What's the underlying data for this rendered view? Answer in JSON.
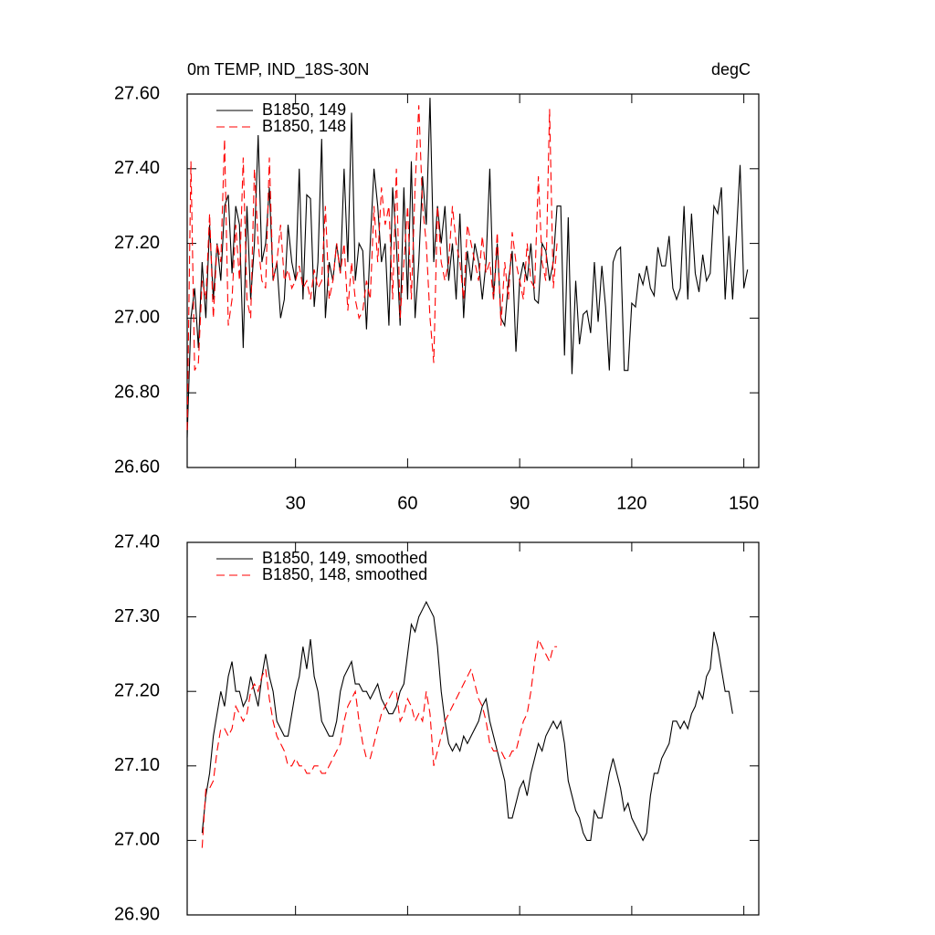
{
  "chart_data": [
    {
      "type": "line",
      "title": "0m TEMP, IND_18S-30N",
      "units": "degC",
      "x": [
        1,
        2,
        3,
        4,
        5,
        6,
        7,
        8,
        9,
        10,
        11,
        12,
        13,
        14,
        15,
        16,
        17,
        18,
        19,
        20,
        21,
        22,
        23,
        24,
        25,
        26,
        27,
        28,
        29,
        30,
        31,
        32,
        33,
        34,
        35,
        36,
        37,
        38,
        39,
        40,
        41,
        42,
        43,
        44,
        45,
        46,
        47,
        48,
        49,
        50,
        51,
        52,
        53,
        54,
        55,
        56,
        57,
        58,
        59,
        60,
        61,
        62,
        63,
        64,
        65,
        66,
        67,
        68,
        69,
        70,
        71,
        72,
        73,
        74,
        75,
        76,
        77,
        78,
        79,
        80,
        81,
        82,
        83,
        84,
        85,
        86,
        87,
        88,
        89,
        90,
        91,
        92,
        93,
        94,
        95,
        96,
        97,
        98,
        99,
        100,
        101,
        102,
        103,
        104,
        105,
        106,
        107,
        108,
        109,
        110,
        111,
        112,
        113,
        114,
        115,
        116,
        117,
        118,
        119,
        120,
        121,
        122,
        123,
        124,
        125,
        126,
        127,
        128,
        129,
        130,
        131,
        132,
        133,
        134,
        135,
        136,
        137,
        138,
        139,
        140,
        141,
        142,
        143,
        144,
        145,
        146,
        147,
        148,
        149,
        150,
        151
      ],
      "series": [
        {
          "name": "B1850, 149",
          "color": "#000000",
          "line_style": "solid",
          "values": [
            26.68,
            27.0,
            27.08,
            26.92,
            27.15,
            27.0,
            27.25,
            27.05,
            27.2,
            27.1,
            27.3,
            27.33,
            27.12,
            27.3,
            27.25,
            26.92,
            27.3,
            27.05,
            27.2,
            27.49,
            27.15,
            27.2,
            27.35,
            27.1,
            27.15,
            27.0,
            27.05,
            27.25,
            27.15,
            27.1,
            27.4,
            27.05,
            27.33,
            27.32,
            27.03,
            27.15,
            27.48,
            27.0,
            27.15,
            27.1,
            27.2,
            27.12,
            27.4,
            27.15,
            27.55,
            27.1,
            27.2,
            27.18,
            26.97,
            27.2,
            27.4,
            27.3,
            27.15,
            27.2,
            26.98,
            27.35,
            27.2,
            26.98,
            27.35,
            27.05,
            27.42,
            27.0,
            27.15,
            27.38,
            27.25,
            27.59,
            27.15,
            27.3,
            27.2,
            27.3,
            27.1,
            27.2,
            27.05,
            27.28,
            27.0,
            27.18,
            27.1,
            27.2,
            27.15,
            27.05,
            27.15,
            27.4,
            27.05,
            27.2,
            27.0,
            26.98,
            27.1,
            27.18,
            26.91,
            27.1,
            27.15,
            27.1,
            27.2,
            27.05,
            27.04,
            27.2,
            27.18,
            27.1,
            27.15,
            27.3,
            27.3,
            26.9,
            27.27,
            26.85,
            27.1,
            26.93,
            27.01,
            27.02,
            26.96,
            27.15,
            26.99,
            27.14,
            27.03,
            26.86,
            27.15,
            27.18,
            27.19,
            26.86,
            26.86,
            27.04,
            27.03,
            27.12,
            27.09,
            27.14,
            27.08,
            27.06,
            27.19,
            27.14,
            27.14,
            27.22,
            27.08,
            27.05,
            27.08,
            27.3,
            27.05,
            27.28,
            27.12,
            27.07,
            27.17,
            27.1,
            27.12,
            27.3,
            27.28,
            27.35,
            27.05,
            27.22,
            27.05,
            27.22,
            27.41,
            27.08,
            27.13
          ]
        },
        {
          "name": "B1850, 148",
          "color": "#ff0000",
          "line_style": "dashed",
          "values": [
            26.7,
            27.42,
            26.86,
            26.88,
            27.1,
            27.05,
            27.28,
            27.0,
            27.2,
            27.15,
            27.48,
            26.98,
            27.05,
            27.25,
            27.1,
            27.43,
            27.05,
            27.0,
            27.4,
            27.2,
            27.1,
            27.08,
            27.43,
            27.1,
            27.15,
            27.25,
            27.1,
            27.13,
            27.08,
            27.1,
            27.14,
            27.08,
            27.1,
            27.05,
            27.13,
            27.08,
            27.1,
            27.3,
            27.05,
            27.1,
            27.2,
            27.12,
            27.2,
            27.02,
            27.15,
            27.05,
            27.0,
            27.02,
            27.1,
            27.05,
            27.3,
            27.15,
            27.35,
            27.25,
            27.3,
            27.05,
            27.4,
            27.0,
            27.15,
            27.3,
            27.05,
            27.35,
            27.57,
            27.3,
            27.2,
            27.0,
            26.88,
            27.3,
            27.15,
            27.1,
            27.15,
            27.3,
            27.2,
            27.15,
            27.05,
            27.25,
            27.2,
            27.15,
            27.1,
            27.22,
            27.12,
            27.15,
            27.05,
            27.23,
            26.98,
            27.15,
            27.05,
            27.23,
            27.15,
            27.1,
            27.05,
            27.2,
            27.1,
            27.08,
            27.38,
            27.15,
            27.1,
            27.56,
            27.08,
            27.2,
            null,
            null,
            null,
            null,
            null,
            null,
            null,
            null,
            null,
            null,
            null,
            null,
            null,
            null,
            null,
            null,
            null,
            null,
            null,
            null,
            null,
            null,
            null,
            null,
            null,
            null,
            null,
            null,
            null,
            null,
            null,
            null,
            null,
            null,
            null,
            null,
            null,
            null,
            null,
            null,
            null,
            null,
            null,
            null,
            null,
            null,
            null,
            null,
            null,
            null,
            null
          ]
        }
      ],
      "xlim": [
        1,
        154
      ],
      "xticks": [
        30,
        60,
        90,
        120,
        150
      ],
      "xtick_labels": true,
      "ylim": [
        26.6,
        27.6
      ],
      "yticks": [
        {
          "value": 26.6,
          "label": "26.60"
        },
        {
          "value": 26.8,
          "label": "26.80"
        },
        {
          "value": 27.0,
          "label": "27.00"
        },
        {
          "value": 27.2,
          "label": "27.20"
        },
        {
          "value": 27.4,
          "label": "27.40"
        },
        {
          "value": 27.6,
          "label": "27.60"
        }
      ],
      "legend": "upper left"
    },
    {
      "type": "line",
      "x": [
        1,
        2,
        3,
        4,
        5,
        6,
        7,
        8,
        9,
        10,
        11,
        12,
        13,
        14,
        15,
        16,
        17,
        18,
        19,
        20,
        21,
        22,
        23,
        24,
        25,
        26,
        27,
        28,
        29,
        30,
        31,
        32,
        33,
        34,
        35,
        36,
        37,
        38,
        39,
        40,
        41,
        42,
        43,
        44,
        45,
        46,
        47,
        48,
        49,
        50,
        51,
        52,
        53,
        54,
        55,
        56,
        57,
        58,
        59,
        60,
        61,
        62,
        63,
        64,
        65,
        66,
        67,
        68,
        69,
        70,
        71,
        72,
        73,
        74,
        75,
        76,
        77,
        78,
        79,
        80,
        81,
        82,
        83,
        84,
        85,
        86,
        87,
        88,
        89,
        90,
        91,
        92,
        93,
        94,
        95,
        96,
        97,
        98,
        99,
        100,
        101,
        102,
        103,
        104,
        105,
        106,
        107,
        108,
        109,
        110,
        111,
        112,
        113,
        114,
        115,
        116,
        117,
        118,
        119,
        120,
        121,
        122,
        123,
        124,
        125,
        126,
        127,
        128,
        129,
        130,
        131,
        132,
        133,
        134,
        135,
        136,
        137,
        138,
        139,
        140,
        141,
        142,
        143,
        144,
        145,
        146,
        147,
        148,
        149,
        150,
        151
      ],
      "series": [
        {
          "name": "B1850, 149, smoothed",
          "color": "#000000",
          "line_style": "solid",
          "values": [
            null,
            null,
            null,
            null,
            27.01,
            27.06,
            27.09,
            27.14,
            27.17,
            27.2,
            27.18,
            27.22,
            27.24,
            27.2,
            27.2,
            27.18,
            27.19,
            27.22,
            27.2,
            27.18,
            27.22,
            27.25,
            27.22,
            27.2,
            27.16,
            27.15,
            27.14,
            27.14,
            27.17,
            27.2,
            27.22,
            27.26,
            27.23,
            27.27,
            27.22,
            27.2,
            27.16,
            27.15,
            27.14,
            27.14,
            27.16,
            27.2,
            27.22,
            27.23,
            27.24,
            27.21,
            27.21,
            27.2,
            27.2,
            27.19,
            27.2,
            27.21,
            27.19,
            27.18,
            27.17,
            27.17,
            27.18,
            27.2,
            27.21,
            27.25,
            27.29,
            27.28,
            27.3,
            27.31,
            27.32,
            27.31,
            27.3,
            27.26,
            27.2,
            27.16,
            27.13,
            27.12,
            27.13,
            27.12,
            27.14,
            27.13,
            27.14,
            27.15,
            27.16,
            27.18,
            27.19,
            27.16,
            27.14,
            27.12,
            27.1,
            27.08,
            27.03,
            27.03,
            27.05,
            27.07,
            27.08,
            27.06,
            27.09,
            27.11,
            27.13,
            27.12,
            27.14,
            27.15,
            27.16,
            27.15,
            27.16,
            27.13,
            27.08,
            27.06,
            27.04,
            27.03,
            27.01,
            27.0,
            27.0,
            27.04,
            27.03,
            27.03,
            27.06,
            27.09,
            27.11,
            27.09,
            27.07,
            27.04,
            27.05,
            27.03,
            27.02,
            27.01,
            27.0,
            27.01,
            27.06,
            27.09,
            27.09,
            27.11,
            27.12,
            27.13,
            27.16,
            27.16,
            27.15,
            27.16,
            27.15,
            27.17,
            27.18,
            27.2,
            27.19,
            27.22,
            27.23,
            27.28,
            27.26,
            27.23,
            27.2,
            27.2,
            27.17,
            null,
            null,
            null,
            null
          ]
        },
        {
          "name": "B1850, 148, smoothed",
          "color": "#ff0000",
          "line_style": "dashed",
          "values": [
            null,
            null,
            null,
            null,
            26.99,
            27.07,
            27.07,
            27.08,
            27.12,
            27.15,
            27.15,
            27.14,
            27.15,
            27.18,
            27.17,
            27.16,
            27.17,
            27.2,
            27.21,
            27.2,
            27.22,
            27.23,
            27.19,
            27.16,
            27.14,
            27.13,
            27.12,
            27.1,
            27.1,
            27.11,
            27.1,
            27.1,
            27.09,
            27.09,
            27.1,
            27.1,
            27.09,
            27.09,
            27.1,
            27.11,
            27.12,
            27.13,
            27.16,
            27.18,
            27.19,
            27.2,
            27.16,
            27.13,
            27.11,
            27.11,
            27.13,
            27.15,
            27.17,
            27.18,
            27.19,
            27.2,
            27.2,
            27.16,
            27.17,
            27.19,
            27.18,
            27.16,
            27.17,
            27.16,
            27.2,
            27.17,
            27.1,
            27.12,
            27.14,
            27.16,
            27.17,
            27.18,
            27.19,
            27.2,
            27.21,
            27.22,
            27.23,
            27.21,
            27.19,
            27.18,
            27.16,
            27.13,
            27.12,
            27.12,
            27.12,
            27.11,
            27.11,
            27.12,
            27.12,
            27.14,
            27.16,
            27.17,
            27.2,
            27.24,
            27.27,
            27.26,
            27.25,
            27.24,
            27.26,
            27.26,
            null,
            null,
            null,
            null,
            null,
            null,
            null,
            null,
            null,
            null,
            null,
            null,
            null,
            null,
            null,
            null,
            null,
            null,
            null,
            null,
            null,
            null,
            null,
            null,
            null,
            null,
            null,
            null,
            null,
            null,
            null,
            null,
            null,
            null,
            null,
            null,
            null,
            null,
            null,
            null,
            null,
            null,
            null,
            null,
            null,
            null,
            null,
            null,
            null,
            null,
            null
          ]
        }
      ],
      "xlim": [
        1,
        154
      ],
      "xticks": [
        30,
        60,
        90,
        120,
        150
      ],
      "xtick_labels": false,
      "ylim": [
        26.9,
        27.4
      ],
      "yticks": [
        {
          "value": 26.9,
          "label": "26.90"
        },
        {
          "value": 27.0,
          "label": "27.00"
        },
        {
          "value": 27.1,
          "label": "27.10"
        },
        {
          "value": 27.2,
          "label": "27.20"
        },
        {
          "value": 27.3,
          "label": "27.30"
        },
        {
          "value": 27.4,
          "label": "27.40"
        }
      ],
      "legend": "upper left"
    }
  ]
}
